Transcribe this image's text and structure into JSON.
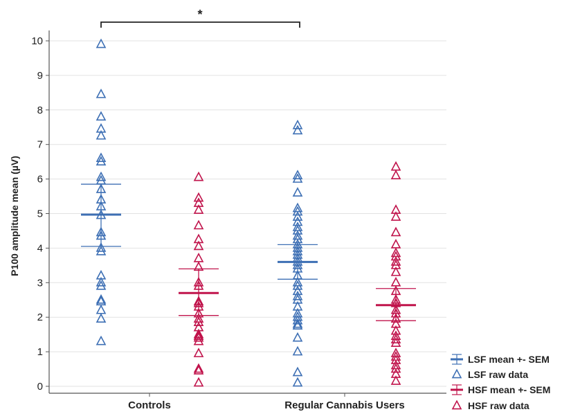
{
  "chart_data": {
    "type": "scatter",
    "ylabel": "P100 amplitude mean (µV)",
    "xlabel": "",
    "ylim": [
      0,
      10
    ],
    "yticks": [
      "0",
      "1",
      "2",
      "3",
      "4",
      "5",
      "6",
      "7",
      "8",
      "9",
      "10"
    ],
    "grid": "horizontal",
    "categories": [
      "Controls",
      "Regular Cannabis Users"
    ],
    "significance": {
      "label": "*",
      "between": [
        "Controls LSF",
        "Regular Cannabis Users LSF"
      ]
    },
    "legend_position": "bottom-right",
    "legend": [
      {
        "label": "LSF mean +- SEM",
        "color": "#3d6fb4",
        "kind": "errorbar"
      },
      {
        "label": "LSF raw data",
        "color": "#3d6fb4",
        "kind": "triangle"
      },
      {
        "label": "HSF mean +- SEM",
        "color": "#c0134b",
        "kind": "errorbar"
      },
      {
        "label": "HSF raw data",
        "color": "#c0134b",
        "kind": "triangle"
      }
    ],
    "series": [
      {
        "group": "Controls",
        "freq": "LSF",
        "color": "#3d6fb4",
        "mean": 4.97,
        "sem_low": 4.05,
        "sem_high": 5.85,
        "values": [
          9.9,
          8.45,
          7.8,
          7.45,
          7.25,
          6.6,
          6.5,
          6.05,
          5.95,
          5.7,
          5.4,
          5.2,
          4.95,
          4.45,
          4.35,
          4.0,
          3.9,
          3.2,
          3.0,
          2.9,
          2.5,
          2.45,
          2.2,
          1.95,
          1.3
        ]
      },
      {
        "group": "Controls",
        "freq": "HSF",
        "color": "#c0134b",
        "mean": 2.7,
        "sem_low": 2.05,
        "sem_high": 3.4,
        "values": [
          6.05,
          5.45,
          5.3,
          5.1,
          4.65,
          4.25,
          4.05,
          3.7,
          3.45,
          3.0,
          2.9,
          2.45,
          2.4,
          2.3,
          2.1,
          1.95,
          1.85,
          1.7,
          1.5,
          1.45,
          1.4,
          1.3,
          0.95,
          0.5,
          0.45,
          0.1
        ]
      },
      {
        "group": "Regular Cannabis Users",
        "freq": "LSF",
        "color": "#3d6fb4",
        "mean": 3.6,
        "sem_low": 3.1,
        "sem_high": 4.1,
        "values": [
          7.55,
          7.4,
          6.1,
          6.0,
          5.6,
          5.15,
          5.05,
          4.9,
          4.75,
          4.6,
          4.5,
          4.35,
          4.25,
          4.1,
          4.0,
          3.9,
          3.8,
          3.7,
          3.6,
          3.5,
          3.4,
          3.2,
          3.0,
          2.9,
          2.75,
          2.6,
          2.5,
          2.3,
          2.1,
          2.0,
          1.9,
          1.8,
          1.75,
          1.4,
          1.0,
          0.4,
          0.1
        ]
      },
      {
        "group": "Regular Cannabis Users",
        "freq": "HSF",
        "color": "#c0134b",
        "mean": 2.35,
        "sem_low": 1.9,
        "sem_high": 2.83,
        "values": [
          6.35,
          6.1,
          5.1,
          4.9,
          4.45,
          4.1,
          3.85,
          3.75,
          3.6,
          3.5,
          3.3,
          3.0,
          2.75,
          2.5,
          2.4,
          2.2,
          2.1,
          1.95,
          1.8,
          1.6,
          1.45,
          1.35,
          1.25,
          0.95,
          0.85,
          0.75,
          0.6,
          0.5,
          0.35,
          0.15
        ]
      }
    ]
  }
}
